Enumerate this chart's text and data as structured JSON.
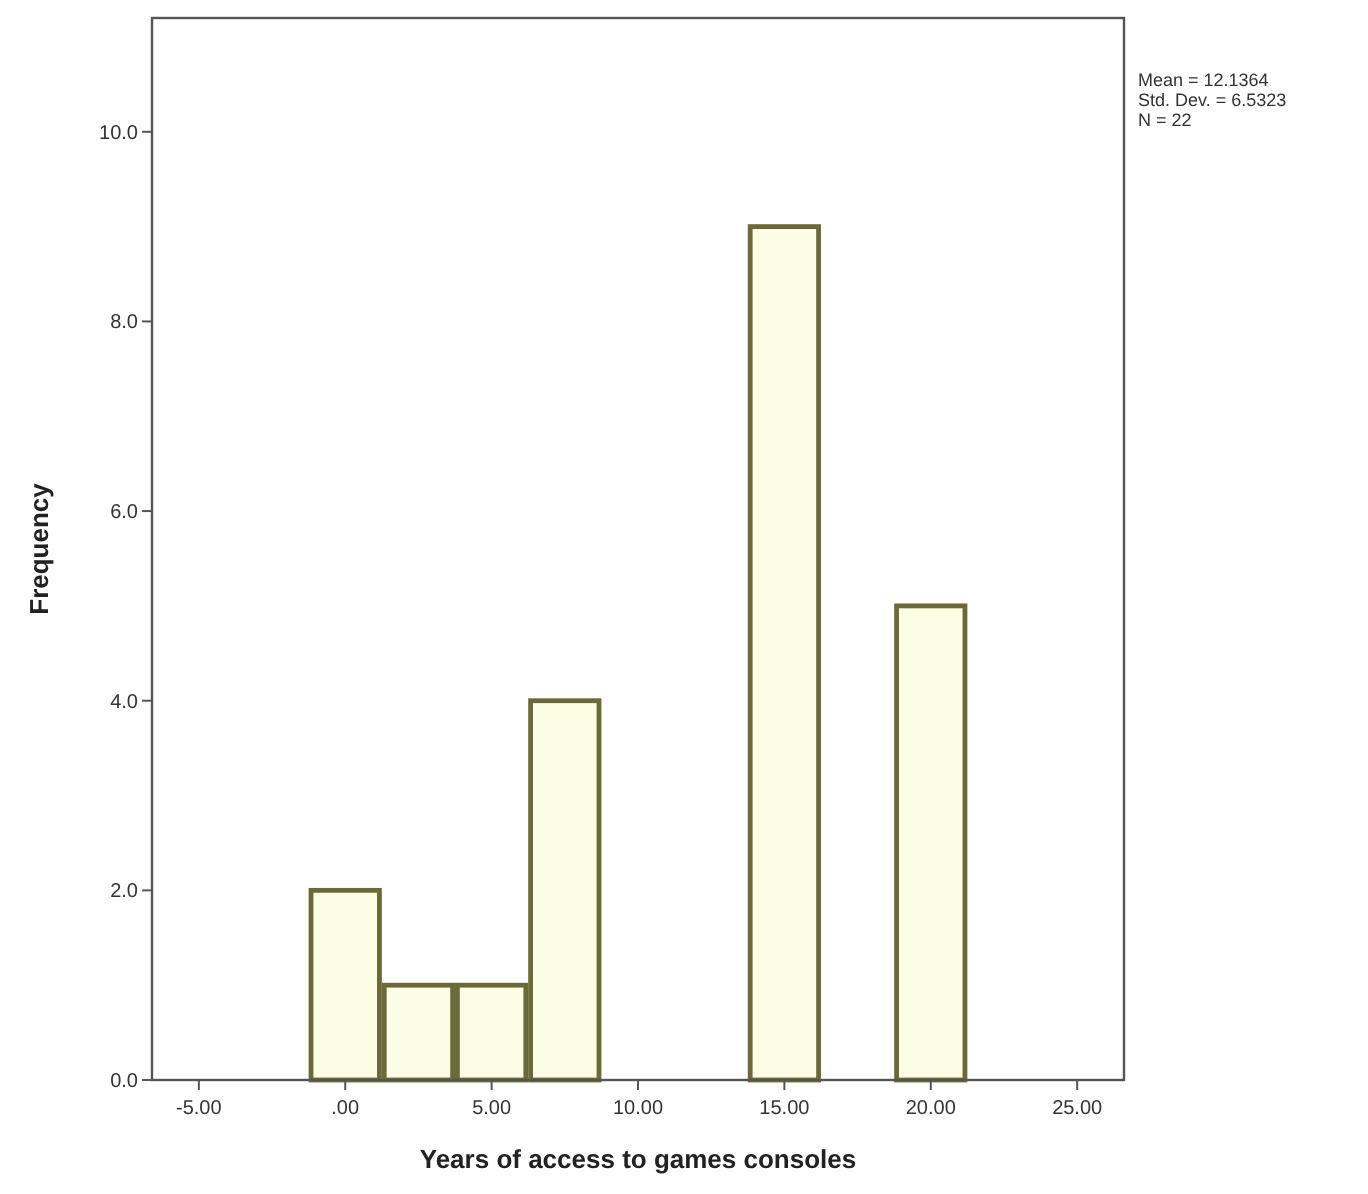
{
  "chart_data": {
    "type": "histogram",
    "xlabel": "Years of access to games consoles",
    "ylabel": "Frequency",
    "bins": [
      -1.25,
      1.25,
      3.75,
      6.25,
      8.75,
      11.25,
      13.75,
      16.25,
      18.75,
      21.25
    ],
    "values": [
      2,
      1,
      1,
      4,
      0,
      0,
      9,
      0,
      5
    ],
    "color": "#fdfde6",
    "xlim": [
      -6.6,
      26.6
    ],
    "xticks": [
      {
        "value": -5,
        "label": "-5.00"
      },
      {
        "value": 0,
        "label": ".00"
      },
      {
        "value": 5,
        "label": "5.00"
      },
      {
        "value": 10,
        "label": "10.00"
      },
      {
        "value": 15,
        "label": "15.00"
      },
      {
        "value": 20,
        "label": "20.00"
      },
      {
        "value": 25,
        "label": "25.00"
      }
    ],
    "ylim": [
      0,
      11.2
    ],
    "yticks": [
      {
        "value": 0,
        "label": "0.0"
      },
      {
        "value": 2,
        "label": "2.0"
      },
      {
        "value": 4,
        "label": "4.0"
      },
      {
        "value": 6,
        "label": "6.0"
      },
      {
        "value": 8,
        "label": "8.0"
      },
      {
        "value": 10,
        "label": "10.0"
      }
    ],
    "annotations": [
      "Mean = 12.1364",
      "Std. Dev. = 6.5323",
      "N = 22"
    ]
  }
}
